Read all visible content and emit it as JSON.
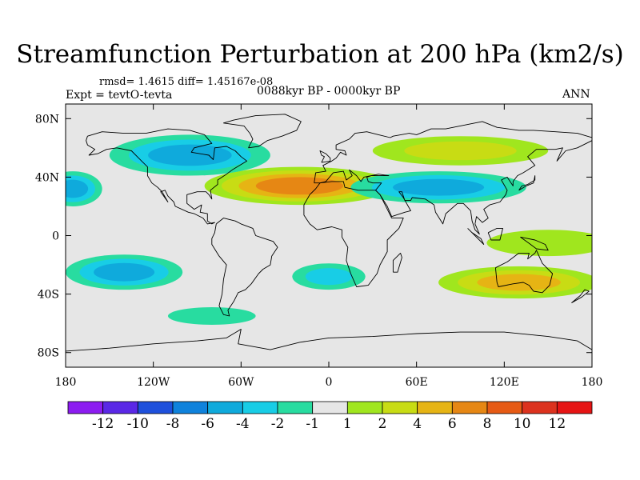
{
  "title": "Streamfunction Perturbation at 200 hPa (km2/s)",
  "stats_text": "rmsd= 1.4615 diff= 1.45167e-08",
  "experiment_text": "Expt = tevtO-tevta",
  "period_text": "0088kyr BP - 0000kyr BP",
  "season_text": "ANN",
  "map": {
    "projection": "cylindrical equidistant",
    "ocean_land_fill": "#e6e6e6",
    "lon_ticks": [
      {
        "value": -180,
        "label": "180"
      },
      {
        "value": -120,
        "label": "120W"
      },
      {
        "value": -60,
        "label": "60W"
      },
      {
        "value": 0,
        "label": "0"
      },
      {
        "value": 60,
        "label": "60E"
      },
      {
        "value": 120,
        "label": "120E"
      },
      {
        "value": 180,
        "label": "180"
      }
    ],
    "lat_ticks": [
      {
        "value": 80,
        "label": "80N"
      },
      {
        "value": 40,
        "label": "40N"
      },
      {
        "value": 0,
        "label": "0"
      },
      {
        "value": -40,
        "label": "40S"
      },
      {
        "value": -80,
        "label": "80S"
      }
    ],
    "features": [
      {
        "name": "pos-north-atlantic",
        "lon": -20,
        "lat": 34,
        "rlon": 65,
        "rlat": 13,
        "levels": [
          1,
          2,
          4,
          6
        ]
      },
      {
        "name": "pos-sw-pacific",
        "lon": 150,
        "lat": -5,
        "rlon": 42,
        "rlat": 9,
        "levels": [
          1
        ]
      },
      {
        "name": "pos-south-pacific-east",
        "lon": 130,
        "lat": -32,
        "rlon": 55,
        "rlat": 11,
        "levels": [
          1,
          2,
          4
        ]
      },
      {
        "name": "pos-siberia",
        "lon": 90,
        "lat": 58,
        "rlon": 60,
        "rlat": 10,
        "levels": [
          1,
          2
        ]
      },
      {
        "name": "neg-canada",
        "lon": -95,
        "lat": 55,
        "rlon": 55,
        "rlat": 14,
        "levels": [
          -1,
          -2,
          -4
        ]
      },
      {
        "name": "neg-asia",
        "lon": 75,
        "lat": 33,
        "rlon": 60,
        "rlat": 11,
        "levels": [
          -1,
          -2,
          -4
        ]
      },
      {
        "name": "neg-south-pacific",
        "lon": -140,
        "lat": -25,
        "rlon": 40,
        "rlat": 12,
        "levels": [
          -1,
          -2,
          -4
        ]
      },
      {
        "name": "neg-south-atlantic",
        "lon": 0,
        "lat": -28,
        "rlon": 25,
        "rlat": 9,
        "levels": [
          -1,
          -2
        ]
      },
      {
        "name": "neg-east-pacific",
        "lon": -175,
        "lat": 32,
        "rlon": 20,
        "rlat": 12,
        "levels": [
          -1,
          -2,
          -4
        ]
      },
      {
        "name": "neg-south-ocean",
        "lon": -80,
        "lat": -55,
        "rlon": 30,
        "rlat": 6,
        "levels": [
          -1
        ]
      }
    ]
  },
  "colorbar": {
    "labels": [
      "-12",
      "-10",
      "-8",
      "-6",
      "-4",
      "-2",
      "-1",
      "1",
      "2",
      "4",
      "6",
      "8",
      "10",
      "12"
    ],
    "colors": [
      "#8c1cf0",
      "#5a28e6",
      "#1e50dc",
      "#0f82dc",
      "#0faadc",
      "#18cde6",
      "#28dca0",
      "#e6e6e6",
      "#a0e61e",
      "#c8dc14",
      "#e6b414",
      "#e68714",
      "#e65a14",
      "#dc321e",
      "#e61414"
    ]
  }
}
